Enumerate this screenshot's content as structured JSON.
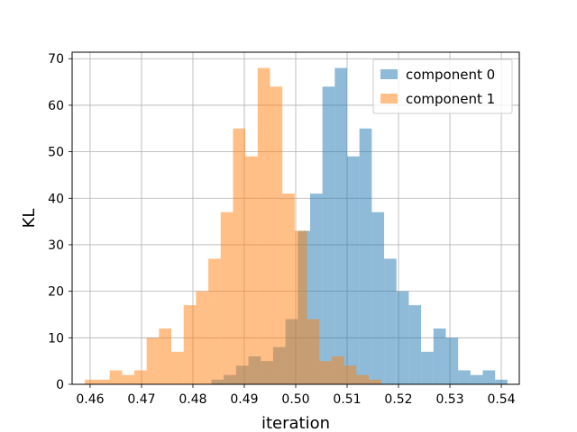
{
  "chart_data": {
    "type": "histogram",
    "xlabel": "iteration",
    "ylabel": "KL",
    "xlim": [
      0.4565,
      0.5435
    ],
    "ylim": [
      0,
      71.4
    ],
    "grid": true,
    "legend_position": "upper-right",
    "x_ticks": [
      0.46,
      0.47,
      0.48,
      0.49,
      0.5,
      0.51,
      0.52,
      0.53,
      0.54
    ],
    "x_tick_labels": [
      "0.46",
      "0.47",
      "0.48",
      "0.49",
      "0.50",
      "0.51",
      "0.52",
      "0.53",
      "0.54"
    ],
    "y_ticks": [
      0,
      10,
      20,
      30,
      40,
      50,
      60,
      70
    ],
    "y_tick_labels": [
      "0",
      "10",
      "20",
      "30",
      "40",
      "50",
      "60",
      "70"
    ],
    "series": [
      {
        "name": "component 0",
        "color": "#1f77b4",
        "opacity": 0.5,
        "bins": [
          {
            "x0": 0.4836,
            "x1": 0.486,
            "count": 1
          },
          {
            "x0": 0.486,
            "x1": 0.4884,
            "count": 2
          },
          {
            "x0": 0.4884,
            "x1": 0.4908,
            "count": 4
          },
          {
            "x0": 0.4908,
            "x1": 0.4932,
            "count": 6
          },
          {
            "x0": 0.4932,
            "x1": 0.4956,
            "count": 5
          },
          {
            "x0": 0.4956,
            "x1": 0.498,
            "count": 8
          },
          {
            "x0": 0.498,
            "x1": 0.5004,
            "count": 14
          },
          {
            "x0": 0.5004,
            "x1": 0.5028,
            "count": 33
          },
          {
            "x0": 0.5028,
            "x1": 0.5052,
            "count": 41
          },
          {
            "x0": 0.5052,
            "x1": 0.5076,
            "count": 64
          },
          {
            "x0": 0.5076,
            "x1": 0.51,
            "count": 68
          },
          {
            "x0": 0.51,
            "x1": 0.5124,
            "count": 49
          },
          {
            "x0": 0.5124,
            "x1": 0.5148,
            "count": 55
          },
          {
            "x0": 0.5148,
            "x1": 0.5172,
            "count": 37
          },
          {
            "x0": 0.5172,
            "x1": 0.5196,
            "count": 27
          },
          {
            "x0": 0.5196,
            "x1": 0.522,
            "count": 20
          },
          {
            "x0": 0.522,
            "x1": 0.5244,
            "count": 17
          },
          {
            "x0": 0.5244,
            "x1": 0.5268,
            "count": 7
          },
          {
            "x0": 0.5268,
            "x1": 0.5292,
            "count": 12
          },
          {
            "x0": 0.5292,
            "x1": 0.5316,
            "count": 10
          },
          {
            "x0": 0.5316,
            "x1": 0.534,
            "count": 3
          },
          {
            "x0": 0.534,
            "x1": 0.5364,
            "count": 2
          },
          {
            "x0": 0.5364,
            "x1": 0.5388,
            "count": 3
          },
          {
            "x0": 0.5388,
            "x1": 0.5412,
            "count": 1
          }
        ]
      },
      {
        "name": "component 1",
        "color": "#ff7f0e",
        "opacity": 0.5,
        "bins": [
          {
            "x0": 0.459,
            "x1": 0.4614,
            "count": 1
          },
          {
            "x0": 0.4614,
            "x1": 0.4638,
            "count": 1
          },
          {
            "x0": 0.4638,
            "x1": 0.4662,
            "count": 3
          },
          {
            "x0": 0.4662,
            "x1": 0.4686,
            "count": 2
          },
          {
            "x0": 0.4686,
            "x1": 0.471,
            "count": 3
          },
          {
            "x0": 0.471,
            "x1": 0.4734,
            "count": 10
          },
          {
            "x0": 0.4734,
            "x1": 0.4758,
            "count": 12
          },
          {
            "x0": 0.4758,
            "x1": 0.4782,
            "count": 7
          },
          {
            "x0": 0.4782,
            "x1": 0.4806,
            "count": 17
          },
          {
            "x0": 0.4806,
            "x1": 0.483,
            "count": 20
          },
          {
            "x0": 0.483,
            "x1": 0.4854,
            "count": 27
          },
          {
            "x0": 0.4854,
            "x1": 0.4878,
            "count": 37
          },
          {
            "x0": 0.4878,
            "x1": 0.4902,
            "count": 55
          },
          {
            "x0": 0.4902,
            "x1": 0.4926,
            "count": 49
          },
          {
            "x0": 0.4926,
            "x1": 0.495,
            "count": 68
          },
          {
            "x0": 0.495,
            "x1": 0.4974,
            "count": 64
          },
          {
            "x0": 0.4974,
            "x1": 0.4998,
            "count": 41
          },
          {
            "x0": 0.4998,
            "x1": 0.5022,
            "count": 33
          },
          {
            "x0": 0.5022,
            "x1": 0.5046,
            "count": 14
          },
          {
            "x0": 0.5046,
            "x1": 0.507,
            "count": 5
          },
          {
            "x0": 0.507,
            "x1": 0.5094,
            "count": 6
          },
          {
            "x0": 0.5094,
            "x1": 0.5118,
            "count": 4
          },
          {
            "x0": 0.5118,
            "x1": 0.5142,
            "count": 2
          },
          {
            "x0": 0.5142,
            "x1": 0.5166,
            "count": 1
          }
        ]
      }
    ]
  }
}
